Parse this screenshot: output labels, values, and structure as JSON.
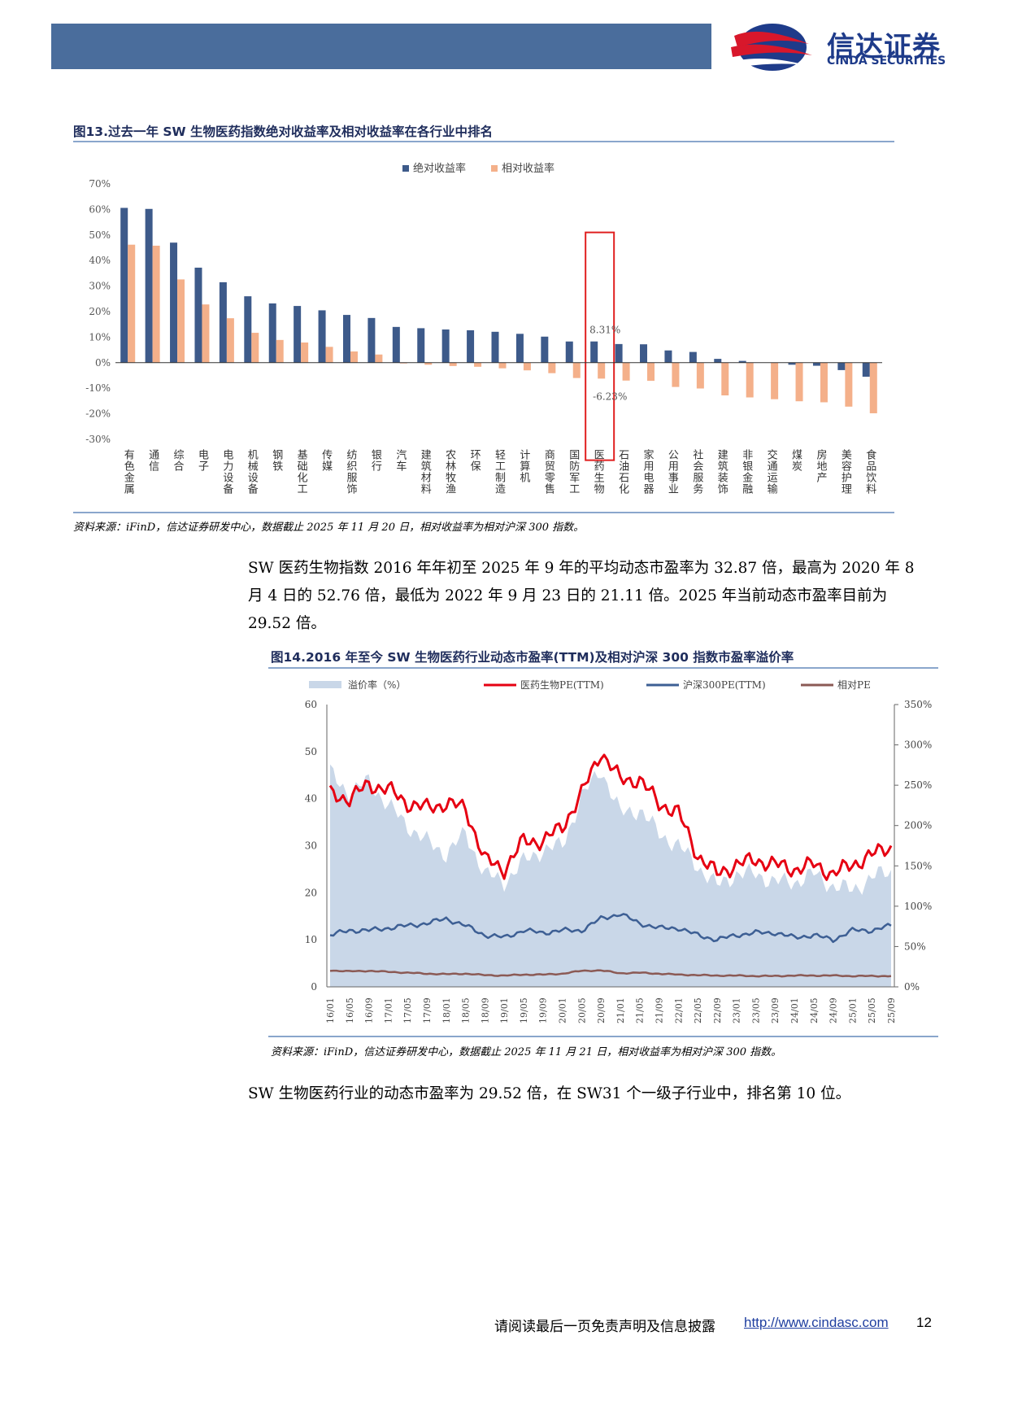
{
  "header": {
    "logo_cn": "信达证券",
    "logo_en": "CINDA SECURITIES"
  },
  "fig13": {
    "title": "图13.过去一年 SW 生物医药指数绝对收益率及相对收益率在各行业中排名",
    "source": "资料来源：iFinD，信达证券研发中心，数据截止 2025 年 11 月 20 日，相对收益率为相对沪深 300 指数。"
  },
  "paragraph1": "SW 医药生物指数 2016 年年初至 2025 年 9 年的平均动态市盈率为 32.87 倍，最高为 2020 年 8 月 4 日的 52.76 倍，最低为 2022 年 9 月 23 日的 21.11 倍。2025 年当前动态市盈率目前为 29.52 倍。",
  "fig14": {
    "title": "图14.2016 年至今 SW 生物医药行业动态市盈率(TTM)及相对沪深 300 指数市盈率溢价率",
    "source": "资料来源：iFinD，信达证券研发中心，数据截止 2025 年 11 月 21 日，相对收益率为相对沪深 300 指数。"
  },
  "paragraph2": "SW 生物医药行业的动态市盈率为 29.52 倍，在 SW31 个一级子行业中，排名第 10 位。",
  "footer": {
    "disclaimer": "请阅读最后一页免责声明及信息披露",
    "url": "http://www.cindasc.com",
    "page": "12"
  },
  "colors": {
    "abs": "#3d5a8a",
    "rel": "#f4b08a",
    "pe": "#e60012",
    "hs300": "#3d5f94",
    "relpe": "#8b5a55",
    "premium": "#c9d7e8",
    "highlight": "#e02020"
  },
  "chart_data": [
    {
      "type": "bar",
      "legend": [
        "绝对收益率",
        "相对收益率"
      ],
      "categories": [
        "有色金属",
        "通信",
        "综合",
        "电子",
        "电力设备",
        "机械设备",
        "钢铁",
        "基础化工",
        "传媒",
        "纺织服饰",
        "银行",
        "汽车",
        "建筑材料",
        "农林牧渔",
        "环保",
        "轻工制造",
        "计算机",
        "商贸零售",
        "国防军工",
        "医药生物",
        "石油石化",
        "家用电器",
        "公用事业",
        "社会服务",
        "建筑装饰",
        "非银金融",
        "交通运输",
        "煤炭",
        "房地产",
        "美容护理",
        "食品饮料"
      ],
      "series": [
        {
          "name": "绝对收益率",
          "values": [
            60.6,
            60.2,
            47.0,
            37.2,
            31.5,
            26.0,
            23.2,
            22.2,
            20.5,
            18.7,
            17.5,
            14.0,
            13.5,
            13.0,
            12.7,
            12.1,
            11.3,
            10.2,
            8.3,
            8.31,
            7.3,
            7.2,
            4.8,
            4.2,
            1.5,
            0.7,
            0.0,
            -0.8,
            -1.2,
            -2.9,
            -5.5
          ]
        },
        {
          "name": "相对收益率",
          "values": [
            46.2,
            45.8,
            32.6,
            22.8,
            17.4,
            11.7,
            8.9,
            7.9,
            6.2,
            4.4,
            3.2,
            -0.3,
            -0.8,
            -1.3,
            -1.6,
            -2.2,
            -3.0,
            -4.1,
            -6.0,
            -6.23,
            -7.0,
            -7.1,
            -9.5,
            -10.1,
            -12.8,
            -13.6,
            -14.3,
            -15.1,
            -15.5,
            -17.2,
            -19.8
          ]
        }
      ],
      "ylim": [
        -30,
        70
      ],
      "yticks": [
        "-30%",
        "-20%",
        "-10%",
        "0%",
        "10%",
        "20%",
        "30%",
        "40%",
        "50%",
        "60%",
        "70%"
      ],
      "highlight_category": "医药生物",
      "annotations": [
        "8.31%",
        "-6.23%"
      ]
    },
    {
      "type": "line",
      "legend": [
        "溢价率（%）",
        "医药生物PE(TTM)",
        "沪深300PE(TTM)",
        "相对PE"
      ],
      "x": [
        "16/01",
        "16/05",
        "16/09",
        "17/01",
        "17/05",
        "17/09",
        "18/01",
        "18/05",
        "18/09",
        "19/01",
        "19/05",
        "19/09",
        "20/01",
        "20/05",
        "20/09",
        "21/01",
        "21/05",
        "21/09",
        "22/01",
        "22/05",
        "22/09",
        "23/01",
        "23/05",
        "23/09",
        "24/01",
        "24/05",
        "24/09",
        "25/01",
        "25/05",
        "25/09"
      ],
      "left_axis": {
        "ylim": [
          0,
          60
        ],
        "ticks": [
          "0",
          "10",
          "20",
          "30",
          "40",
          "50",
          "60"
        ]
      },
      "right_axis": {
        "ylim": [
          0,
          350
        ],
        "ticks": [
          "0%",
          "50%",
          "100%",
          "150%",
          "200%",
          "250%",
          "300%",
          "350%"
        ]
      },
      "series": [
        {
          "name": "医药生物PE(TTM)",
          "axis": "left",
          "values": [
            41,
            40,
            43,
            42,
            39,
            38,
            39,
            38,
            27,
            25,
            31,
            31,
            34,
            41,
            50,
            44,
            44,
            39,
            37,
            28,
            24,
            26,
            27,
            26,
            25,
            26,
            24,
            26,
            28,
            30
          ]
        },
        {
          "name": "沪深300PE(TTM)",
          "axis": "left",
          "values": [
            11,
            12,
            12,
            12.5,
            13,
            13.5,
            14.5,
            13,
            11,
            10.5,
            12,
            11.5,
            12,
            12,
            14.5,
            15.5,
            13.5,
            12.5,
            12.5,
            11,
            10,
            11,
            11.5,
            11.5,
            10.5,
            11,
            10,
            12,
            12,
            13
          ]
        },
        {
          "name": "相对PE",
          "axis": "left",
          "values": [
            3.5,
            3.3,
            3.4,
            3.2,
            3.0,
            2.8,
            2.7,
            2.8,
            2.5,
            2.4,
            2.6,
            2.6,
            2.8,
            3.4,
            3.5,
            2.9,
            3.0,
            2.8,
            2.6,
            2.5,
            2.4,
            2.4,
            2.3,
            2.3,
            2.4,
            2.4,
            2.4,
            2.3,
            2.3,
            2.3
          ]
        },
        {
          "name": "溢价率（%）",
          "axis": "right",
          "values": [
            265,
            240,
            255,
            225,
            200,
            180,
            165,
            190,
            140,
            130,
            155,
            170,
            175,
            235,
            270,
            215,
            220,
            190,
            175,
            150,
            125,
            140,
            140,
            130,
            130,
            140,
            125,
            120,
            135,
            145
          ]
        }
      ]
    }
  ]
}
